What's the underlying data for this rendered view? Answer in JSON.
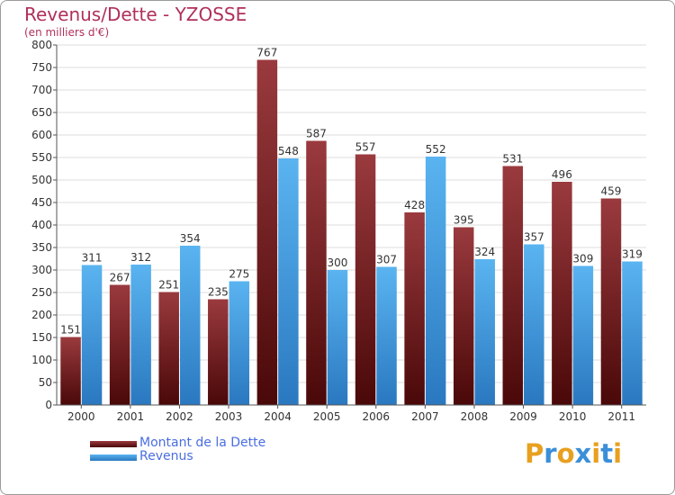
{
  "chart_data": {
    "type": "bar",
    "title": "Revenus/Dette - YZOSSE",
    "subtitle": "(en milliers d'€)",
    "xlabel": "",
    "ylabel": "",
    "ylim": [
      0,
      800
    ],
    "yticks": [
      0,
      50,
      100,
      150,
      200,
      250,
      300,
      350,
      400,
      450,
      500,
      550,
      600,
      650,
      700,
      750,
      800
    ],
    "grid": true,
    "legend_position": "bottom-left",
    "categories": [
      "2000",
      "2001",
      "2002",
      "2003",
      "2004",
      "2005",
      "2006",
      "2007",
      "2008",
      "2009",
      "2010",
      "2011"
    ],
    "series": [
      {
        "name": "Montant de la Dette",
        "color": "#7a1a1e",
        "values": [
          151,
          267,
          251,
          235,
          767,
          587,
          557,
          428,
          395,
          531,
          496,
          459
        ]
      },
      {
        "name": "Revenus",
        "color": "#3d9ee0",
        "values": [
          311,
          312,
          354,
          275,
          548,
          300,
          307,
          552,
          324,
          357,
          309,
          319
        ]
      }
    ]
  },
  "legend": {
    "debt_label": "Montant de la Dette",
    "revenue_label": "Revenus"
  },
  "logo": {
    "letters": [
      "P",
      "r",
      "o",
      "x",
      "i",
      "t",
      "i"
    ],
    "colors": [
      "#e8a020",
      "#3a8fd8",
      "#e8a020",
      "#3a8fd8",
      "#e8a020",
      "#3a8fd8",
      "#e8a020"
    ]
  },
  "colors": {
    "title": "#b0305a",
    "debt_dark": "#4a0808",
    "debt_light": "#9a3a3e",
    "revenue_dark": "#2a78c0",
    "revenue_light": "#5ab4f0"
  }
}
